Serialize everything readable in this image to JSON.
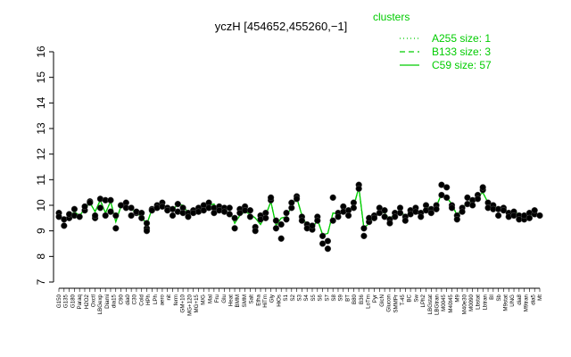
{
  "chart_data": {
    "type": "line",
    "title": "yczH [454652,455260,−1]",
    "xlabel": "",
    "ylabel": "",
    "ylim": [
      7,
      16
    ],
    "yticks": [
      7,
      8,
      9,
      10,
      11,
      12,
      13,
      14,
      15,
      16
    ],
    "grid": false,
    "legend": {
      "title": "clusters",
      "placement": "top-right",
      "entries": [
        {
          "label": "A255 size: 1",
          "style": "dotted"
        },
        {
          "label": "B133 size: 3",
          "style": "dashed"
        },
        {
          "label": "C59 size: 57",
          "style": "solid"
        }
      ]
    },
    "line_color": "#00cc00",
    "point_color": "#000000",
    "categories": [
      "G150",
      "G135",
      "G180",
      "Paraq",
      "H2O2",
      "Oxctl",
      "LBGexp",
      "Diami",
      "dia15",
      "dia0",
      "C90",
      "C30",
      "Cold",
      "HPh",
      "LPh",
      "aero",
      "nit",
      "ferm",
      "GM+10",
      "GM+15",
      "GM+25",
      "GM+45",
      "GM+60",
      "GM+90",
      "GM+120",
      "MG+5",
      "MG+10",
      "MG+15",
      "MG+25",
      "MG+45",
      "MG+60",
      "MG+90",
      "MG+120",
      "M/G",
      "Mal",
      "Fru",
      "Glu",
      "SMM",
      "Heat",
      "BMM",
      "Salt",
      "Etha",
      "HiTm",
      "Gly",
      "HiOs",
      "S1",
      "S2",
      "S3",
      "S4",
      "S5",
      "S6",
      "S7",
      "S8",
      "S9",
      "BT",
      "B36",
      "B80",
      "LoTm",
      "Pyr",
      "Glucon",
      "GlcN",
      "SMMPr",
      "T-45",
      "T-30",
      "T-15",
      "T0",
      "T15",
      "T30",
      "T45",
      "T60",
      "T90",
      "T120",
      "T150",
      "T180",
      "BC",
      "Sw",
      "LPh2",
      "LBGstat",
      "LBGtran",
      "M0045",
      "M40t45",
      "M9",
      "M40e30",
      "M9tran",
      "M9stat",
      "M0090",
      "Lbstat",
      "Lbtran",
      "BI",
      "Sb",
      "UNG",
      "dia8",
      "dia5",
      "Mt"
    ],
    "x_axis_labels": [
      "G150",
      "G135",
      "G180",
      "Paraq",
      "H2O2",
      "Oxctl",
      "LBGexp",
      "Diami",
      "dia15",
      "C90",
      "dia0",
      "C30",
      "Cold",
      "HPh",
      "LPh",
      "aero",
      "nit",
      "ferm",
      "GM+10",
      "MG+120",
      "MG+15",
      "M/G",
      "Mal",
      "Fru",
      "Glu",
      "Heat",
      "BMM",
      "SMM",
      "Salt",
      "Etha",
      "HiTm",
      "Gly",
      "HiOs",
      "S1",
      "S2",
      "S3",
      "S4",
      "S5",
      "S6",
      "S7",
      "S8",
      "S9",
      "BT",
      "B80",
      "B36",
      "LoTm",
      "Pyr",
      "GlcN",
      "Glucon",
      "SMMPr",
      "T-45",
      "BC",
      "Sw",
      "LPh2",
      "LBGstat",
      "LBGtran",
      "M0045",
      "M40t45",
      "M9",
      "M40e30",
      "M0090",
      "Lbstat",
      "Lbtran",
      "BI",
      "Sb",
      "M9stat",
      "UNG",
      "dia8",
      "M9tran",
      "dia5",
      "Mt"
    ],
    "series": [
      {
        "values": [
          9.65,
          9.4,
          9.55,
          9.75,
          9.6,
          9.85,
          10.1,
          9.75,
          10.2,
          9.7,
          10.15,
          9.35,
          9.95,
          10.0,
          9.85,
          9.7,
          9.55,
          9.25,
          9.85,
          9.95,
          10.0,
          9.9,
          9.8,
          10.05,
          10.0,
          9.7,
          9.75,
          9.8,
          9.9,
          10.0,
          10.05,
          9.75,
          9.9,
          9.8,
          9.3,
          9.6,
          9.75,
          9.65,
          9.5,
          9.25,
          9.6,
          10.15,
          9.2,
          9.5,
          9.55,
          9.95,
          10.3,
          9.6,
          9.2,
          9.05,
          9.45,
          8.85,
          8.9,
          9.7,
          9.65,
          9.85,
          9.75,
          9.95,
          10.7,
          9.1,
          9.3,
          9.55,
          9.75,
          9.7,
          9.45,
          9.7,
          9.8,
          9.55,
          9.75,
          9.85,
          9.65,
          9.95,
          9.8,
          9.95,
          10.45,
          10.3,
          10.05,
          9.6,
          9.9,
          10.1,
          10.15,
          10.35,
          10.5,
          10.1,
          10.0,
          9.85,
          9.9,
          9.7,
          9.75,
          9.65,
          9.5,
          9.6,
          9.65,
          9.6
        ]
      },
      {
        "values": [
          9.65,
          9.4,
          9.55,
          9.75,
          9.6,
          9.85,
          10.1,
          9.75,
          10.2,
          9.7,
          10.15,
          9.35,
          9.95,
          10.0,
          9.85,
          9.7,
          9.55,
          9.25,
          9.85,
          9.95,
          10.0,
          9.9,
          9.8,
          10.05,
          10.0,
          9.7,
          9.75,
          9.8,
          9.9,
          10.0,
          10.05,
          9.75,
          9.9,
          9.8,
          9.3,
          9.6,
          9.75,
          9.65,
          9.5,
          9.25,
          9.6,
          10.15,
          9.2,
          9.5,
          9.55,
          9.95,
          10.3,
          9.6,
          9.2,
          9.05,
          9.45,
          8.85,
          8.9,
          9.7,
          9.65,
          9.85,
          9.75,
          9.95,
          10.7,
          9.1,
          9.3,
          9.55,
          9.75,
          9.7,
          9.45,
          9.7,
          9.8,
          9.55,
          9.75,
          9.85,
          9.65,
          9.95,
          9.8,
          9.95,
          10.45,
          10.3,
          10.05,
          9.6,
          9.9,
          10.1,
          10.15,
          10.35,
          10.5,
          10.1,
          10.0,
          9.85,
          9.9,
          9.7,
          9.75,
          9.65,
          9.5,
          9.6,
          9.65,
          9.6
        ]
      },
      {
        "values": [
          9.65,
          9.4,
          9.55,
          9.75,
          9.6,
          9.85,
          10.1,
          9.75,
          10.2,
          9.7,
          10.15,
          9.35,
          9.95,
          10.0,
          9.85,
          9.7,
          9.55,
          9.25,
          9.85,
          9.95,
          10.0,
          9.9,
          9.8,
          10.05,
          10.0,
          9.7,
          9.75,
          9.8,
          9.9,
          10.0,
          10.05,
          9.75,
          9.9,
          9.8,
          9.3,
          9.6,
          9.75,
          9.65,
          9.5,
          9.25,
          9.6,
          10.15,
          9.2,
          9.5,
          9.55,
          9.95,
          10.3,
          9.6,
          9.2,
          9.05,
          9.45,
          8.85,
          8.9,
          9.7,
          9.65,
          9.85,
          9.75,
          9.95,
          10.7,
          9.1,
          9.3,
          9.55,
          9.75,
          9.7,
          9.45,
          9.7,
          9.8,
          9.55,
          9.75,
          9.85,
          9.65,
          9.95,
          9.8,
          9.95,
          10.45,
          10.3,
          10.05,
          9.6,
          9.9,
          10.1,
          10.15,
          10.35,
          10.5,
          10.1,
          10.0,
          9.85,
          9.9,
          9.7,
          9.75,
          9.65,
          9.5,
          9.6,
          9.65,
          9.6
        ]
      }
    ],
    "points": [
      [
        1,
        9.7
      ],
      [
        1,
        9.55
      ],
      [
        2,
        9.2
      ],
      [
        2,
        9.45
      ],
      [
        3,
        9.5
      ],
      [
        3,
        9.65
      ],
      [
        4,
        9.85
      ],
      [
        4,
        9.6
      ],
      [
        5,
        9.55
      ],
      [
        6,
        9.8
      ],
      [
        6,
        9.95
      ],
      [
        7,
        10.15
      ],
      [
        7,
        10.1
      ],
      [
        8,
        9.5
      ],
      [
        8,
        9.6
      ],
      [
        9,
        10.25
      ],
      [
        9,
        9.9
      ],
      [
        10,
        10.2
      ],
      [
        10,
        9.6
      ],
      [
        11,
        9.75
      ],
      [
        11,
        10.2
      ],
      [
        12,
        9.1
      ],
      [
        12,
        9.6
      ],
      [
        13,
        10.0
      ],
      [
        14,
        10.1
      ],
      [
        14,
        9.9
      ],
      [
        15,
        9.9
      ],
      [
        15,
        9.6
      ],
      [
        16,
        9.7
      ],
      [
        16,
        9.75
      ],
      [
        17,
        9.7
      ],
      [
        17,
        9.5
      ],
      [
        18,
        9.1
      ],
      [
        18,
        9.0
      ],
      [
        18,
        9.3
      ],
      [
        19,
        9.85
      ],
      [
        19,
        9.8
      ],
      [
        20,
        10.0
      ],
      [
        20,
        9.9
      ],
      [
        21,
        10.1
      ],
      [
        21,
        9.95
      ],
      [
        22,
        9.9
      ],
      [
        22,
        9.8
      ],
      [
        23,
        9.85
      ],
      [
        23,
        9.6
      ],
      [
        24,
        10.05
      ],
      [
        24,
        9.75
      ],
      [
        25,
        9.9
      ],
      [
        25,
        9.7
      ],
      [
        26,
        9.7
      ],
      [
        26,
        9.55
      ],
      [
        27,
        9.8
      ],
      [
        27,
        9.7
      ],
      [
        28,
        9.9
      ],
      [
        28,
        9.75
      ],
      [
        29,
        10.0
      ],
      [
        29,
        9.8
      ],
      [
        30,
        10.1
      ],
      [
        30,
        9.9
      ],
      [
        31,
        9.9
      ],
      [
        31,
        9.7
      ],
      [
        32,
        9.95
      ],
      [
        32,
        9.8
      ],
      [
        33,
        9.9
      ],
      [
        33,
        9.75
      ],
      [
        34,
        9.9
      ],
      [
        34,
        9.65
      ],
      [
        35,
        9.1
      ],
      [
        35,
        9.5
      ],
      [
        36,
        9.85
      ],
      [
        36,
        9.7
      ],
      [
        37,
        9.95
      ],
      [
        37,
        9.8
      ],
      [
        38,
        9.8
      ],
      [
        38,
        9.55
      ],
      [
        39,
        9.15
      ],
      [
        39,
        9.0
      ],
      [
        40,
        9.6
      ],
      [
        40,
        9.45
      ],
      [
        41,
        9.7
      ],
      [
        41,
        9.5
      ],
      [
        42,
        10.2
      ],
      [
        42,
        10.3
      ],
      [
        43,
        9.1
      ],
      [
        43,
        9.4
      ],
      [
        44,
        8.7
      ],
      [
        44,
        9.25
      ],
      [
        45,
        9.45
      ],
      [
        45,
        9.7
      ],
      [
        46,
        9.9
      ],
      [
        46,
        10.1
      ],
      [
        47,
        10.35
      ],
      [
        47,
        10.25
      ],
      [
        48,
        9.55
      ],
      [
        48,
        9.4
      ],
      [
        49,
        9.25
      ],
      [
        49,
        9.1
      ],
      [
        50,
        9.05
      ],
      [
        50,
        9.2
      ],
      [
        51,
        9.55
      ],
      [
        51,
        9.4
      ],
      [
        52,
        8.5
      ],
      [
        52,
        8.8
      ],
      [
        53,
        8.3
      ],
      [
        53,
        8.6
      ],
      [
        54,
        9.4
      ],
      [
        54,
        10.3
      ],
      [
        55,
        9.7
      ],
      [
        55,
        9.55
      ],
      [
        56,
        9.95
      ],
      [
        56,
        9.75
      ],
      [
        57,
        9.8
      ],
      [
        57,
        9.6
      ],
      [
        58,
        10.1
      ],
      [
        58,
        9.9
      ],
      [
        59,
        10.8
      ],
      [
        59,
        10.65
      ],
      [
        60,
        9.1
      ],
      [
        60,
        8.8
      ],
      [
        61,
        9.35
      ],
      [
        61,
        9.5
      ],
      [
        62,
        9.6
      ],
      [
        62,
        9.5
      ],
      [
        63,
        9.9
      ],
      [
        63,
        9.7
      ],
      [
        64,
        9.8
      ],
      [
        64,
        9.55
      ],
      [
        65,
        9.45
      ],
      [
        65,
        9.3
      ],
      [
        66,
        9.7
      ],
      [
        66,
        9.55
      ],
      [
        67,
        9.9
      ],
      [
        67,
        9.7
      ],
      [
        68,
        9.55
      ],
      [
        68,
        9.4
      ],
      [
        69,
        9.8
      ],
      [
        69,
        9.65
      ],
      [
        70,
        9.9
      ],
      [
        70,
        9.75
      ],
      [
        71,
        9.7
      ],
      [
        71,
        9.55
      ],
      [
        72,
        10.0
      ],
      [
        72,
        9.8
      ],
      [
        73,
        9.85
      ],
      [
        73,
        9.7
      ],
      [
        74,
        10.0
      ],
      [
        74,
        9.85
      ],
      [
        75,
        10.8
      ],
      [
        75,
        10.4
      ],
      [
        76,
        10.7
      ],
      [
        76,
        10.3
      ],
      [
        77,
        10.0
      ],
      [
        77,
        9.9
      ],
      [
        78,
        9.6
      ],
      [
        78,
        9.45
      ],
      [
        79,
        9.9
      ],
      [
        79,
        9.75
      ],
      [
        80,
        10.05
      ],
      [
        80,
        10.3
      ],
      [
        81,
        10.2
      ],
      [
        81,
        10.0
      ],
      [
        82,
        10.4
      ],
      [
        82,
        10.25
      ],
      [
        83,
        10.6
      ],
      [
        83,
        10.7
      ],
      [
        84,
        10.1
      ],
      [
        84,
        9.9
      ],
      [
        85,
        10.0
      ],
      [
        85,
        9.85
      ],
      [
        86,
        9.85
      ],
      [
        86,
        9.6
      ],
      [
        87,
        9.9
      ],
      [
        87,
        9.8
      ],
      [
        88,
        9.7
      ],
      [
        88,
        9.55
      ],
      [
        89,
        9.75
      ],
      [
        89,
        9.6
      ],
      [
        90,
        9.6
      ],
      [
        90,
        9.45
      ],
      [
        91,
        9.45
      ],
      [
        91,
        9.6
      ],
      [
        92,
        9.7
      ],
      [
        92,
        9.5
      ],
      [
        93,
        9.65
      ],
      [
        93,
        9.8
      ],
      [
        94,
        9.6
      ]
    ]
  }
}
